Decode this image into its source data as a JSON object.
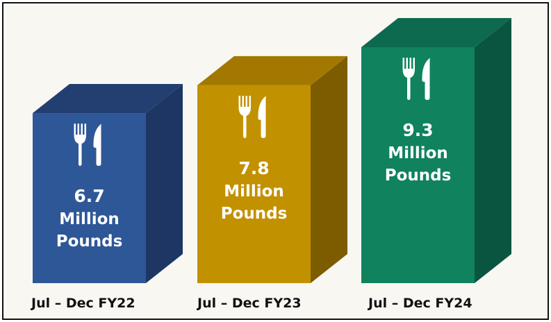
{
  "chart_data": {
    "type": "bar",
    "style": "3d-boxes",
    "categories": [
      "Jul – Dec FY22",
      "Jul – Dec FY23",
      "Jul – Dec FY24"
    ],
    "values": [
      6.7,
      7.8,
      9.3
    ],
    "value_labels": [
      "6.7",
      "7.8",
      "9.3"
    ],
    "unit_label": [
      "Million",
      "Pounds"
    ],
    "icon": "fork-knife-icon",
    "colors": {
      "front": [
        "#2e5797",
        "#c29100",
        "#10825e"
      ],
      "top": [
        "#233f72",
        "#a27800",
        "#0d6a4e"
      ],
      "side": [
        "#1d3664",
        "#7d5c00",
        "#0a553f"
      ]
    },
    "title": "",
    "xlabel": "",
    "ylabel": "",
    "grid": false
  }
}
